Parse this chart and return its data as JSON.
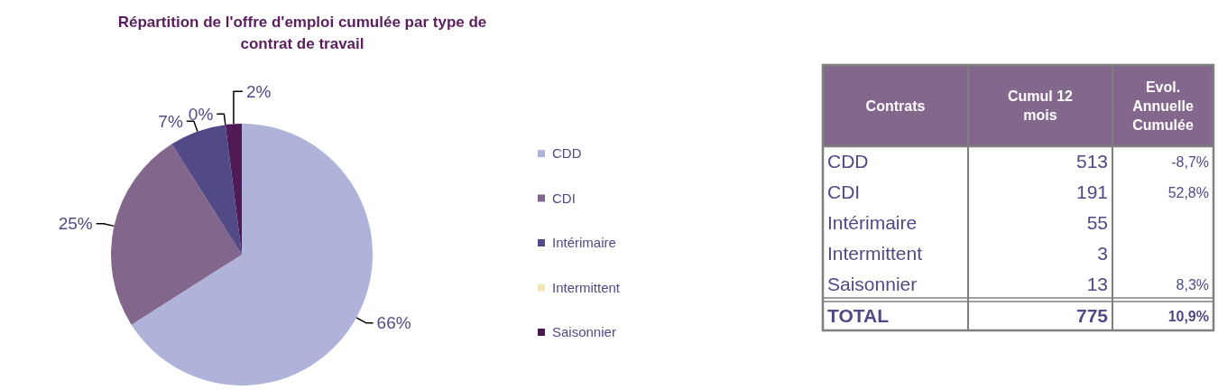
{
  "chart_data": [
    {
      "type": "pie",
      "title": "Répartition de l'offre d'emploi cumulée par type de contrat de travail",
      "categories": [
        "CDD",
        "CDI",
        "Intérimaire",
        "Intermittent",
        "Saisonnier"
      ],
      "values": [
        66,
        25,
        7,
        0,
        2
      ],
      "colors": [
        "#afb3d9",
        "#82668b",
        "#524a86",
        "#f3e6b8",
        "#4f1a56"
      ],
      "value_labels": [
        "66%",
        "25%",
        "7%",
        "0%",
        "2%"
      ],
      "legend": "right"
    },
    {
      "type": "other",
      "ylabel": "Contrats",
      "categories": [
        "CDD",
        "CDI",
        "Intérimaire",
        "Intermittent",
        "Saisonnier",
        "TOTAL"
      ],
      "data_labels": true,
      "series": [
        {
          "name": "Cumul 12 mois",
          "values": [
            513,
            191,
            55,
            3,
            13,
            775
          ]
        },
        {
          "name": "Evol. Annuelle Cumulée",
          "values": [
            -8.7,
            52.8,
            null,
            null,
            8.3,
            10.9
          ],
          "value_labels": [
            "-8,7%",
            "52,8%",
            null,
            null,
            "8,3%",
            "10,9%"
          ]
        }
      ]
    }
  ]
}
